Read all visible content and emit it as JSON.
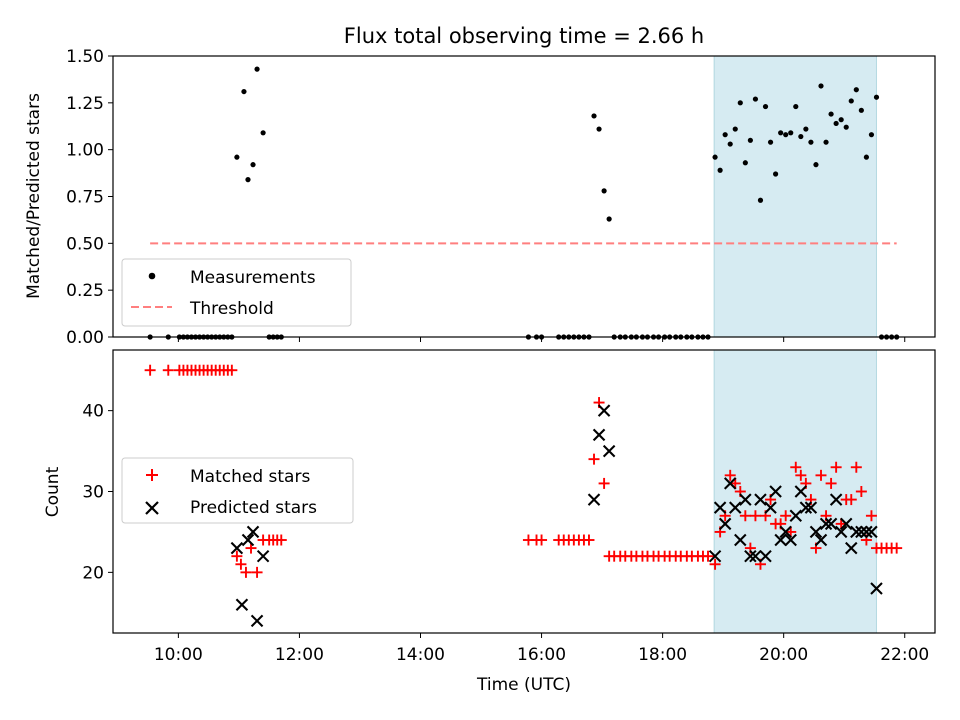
{
  "chart_data": [
    {
      "type": "scatter",
      "title": "Flux total observing time = 2.66 h",
      "xlabel": "",
      "ylabel": "Matched/Predicted stars",
      "xlim_hours": [
        8.92,
        22.5
      ],
      "ylim": [
        0,
        1.5
      ],
      "yticks": [
        0.0,
        0.25,
        0.5,
        0.75,
        1.0,
        1.25,
        1.5
      ],
      "ytick_labels": [
        "0.00",
        "0.25",
        "0.50",
        "0.75",
        "1.00",
        "1.25",
        "1.50"
      ],
      "shaded_span": [
        "18:51",
        "21:32"
      ],
      "shaded_color": "#add8e6",
      "legend_position": "lower-left",
      "series": [
        {
          "name": "Measurements",
          "marker": "dot",
          "color": "#000000",
          "points": [
            [
              "09:32",
              0.0
            ],
            [
              "09:50",
              0.0
            ],
            [
              "10:01",
              0.0
            ],
            [
              "10:05",
              0.0
            ],
            [
              "10:09",
              0.0
            ],
            [
              "10:13",
              0.0
            ],
            [
              "10:17",
              0.0
            ],
            [
              "10:21",
              0.0
            ],
            [
              "10:25",
              0.0
            ],
            [
              "10:29",
              0.0
            ],
            [
              "10:33",
              0.0
            ],
            [
              "10:37",
              0.0
            ],
            [
              "10:41",
              0.0
            ],
            [
              "10:45",
              0.0
            ],
            [
              "10:49",
              0.0
            ],
            [
              "10:53",
              0.0
            ],
            [
              "10:58",
              0.96
            ],
            [
              "11:05",
              1.31
            ],
            [
              "11:09",
              0.84
            ],
            [
              "11:14",
              0.92
            ],
            [
              "11:18",
              1.43
            ],
            [
              "11:24",
              1.09
            ],
            [
              "11:30",
              0.0
            ],
            [
              "11:34",
              0.0
            ],
            [
              "11:38",
              0.0
            ],
            [
              "11:42",
              0.0
            ],
            [
              "15:47",
              0.0
            ],
            [
              "15:55",
              0.0
            ],
            [
              "16:00",
              0.0
            ],
            [
              "16:17",
              0.0
            ],
            [
              "16:22",
              0.0
            ],
            [
              "16:27",
              0.0
            ],
            [
              "16:32",
              0.0
            ],
            [
              "16:37",
              0.0
            ],
            [
              "16:42",
              0.0
            ],
            [
              "16:47",
              0.0
            ],
            [
              "16:52",
              1.18
            ],
            [
              "16:57",
              1.11
            ],
            [
              "17:02",
              0.78
            ],
            [
              "17:07",
              0.63
            ],
            [
              "17:12",
              0.0
            ],
            [
              "17:18",
              0.0
            ],
            [
              "17:23",
              0.0
            ],
            [
              "17:29",
              0.0
            ],
            [
              "17:34",
              0.0
            ],
            [
              "17:40",
              0.0
            ],
            [
              "17:45",
              0.0
            ],
            [
              "17:51",
              0.0
            ],
            [
              "17:56",
              0.0
            ],
            [
              "18:02",
              0.0
            ],
            [
              "18:07",
              0.0
            ],
            [
              "18:13",
              0.0
            ],
            [
              "18:18",
              0.0
            ],
            [
              "18:24",
              0.0
            ],
            [
              "18:29",
              0.0
            ],
            [
              "18:35",
              0.0
            ],
            [
              "18:40",
              0.0
            ],
            [
              "18:45",
              0.0
            ],
            [
              "18:52",
              0.96
            ],
            [
              "18:57",
              0.89
            ],
            [
              "19:02",
              1.08
            ],
            [
              "19:07",
              1.03
            ],
            [
              "19:12",
              1.11
            ],
            [
              "19:17",
              1.25
            ],
            [
              "19:22",
              0.93
            ],
            [
              "19:27",
              1.05
            ],
            [
              "19:32",
              1.27
            ],
            [
              "19:37",
              0.73
            ],
            [
              "19:42",
              1.23
            ],
            [
              "19:47",
              1.04
            ],
            [
              "19:52",
              0.87
            ],
            [
              "19:57",
              1.09
            ],
            [
              "20:02",
              1.08
            ],
            [
              "20:07",
              1.09
            ],
            [
              "20:12",
              1.23
            ],
            [
              "20:17",
              1.07
            ],
            [
              "20:22",
              1.11
            ],
            [
              "20:27",
              1.04
            ],
            [
              "20:32",
              0.92
            ],
            [
              "20:37",
              1.34
            ],
            [
              "20:42",
              1.04
            ],
            [
              "20:47",
              1.19
            ],
            [
              "20:52",
              1.14
            ],
            [
              "20:57",
              1.16
            ],
            [
              "21:02",
              1.12
            ],
            [
              "21:07",
              1.26
            ],
            [
              "21:12",
              1.32
            ],
            [
              "21:17",
              1.21
            ],
            [
              "21:22",
              0.96
            ],
            [
              "21:27",
              1.08
            ],
            [
              "21:32",
              1.28
            ],
            [
              "21:37",
              0.0
            ],
            [
              "21:42",
              0.0
            ],
            [
              "21:47",
              0.0
            ],
            [
              "21:52",
              0.0
            ]
          ]
        },
        {
          "name": "Threshold",
          "line": "dashed",
          "color": "#ff7f7f",
          "points": [
            [
              "09:32",
              0.5
            ],
            [
              "21:52",
              0.5
            ]
          ]
        }
      ]
    },
    {
      "type": "scatter",
      "title": "",
      "xlabel": "Time (UTC)",
      "ylabel": "Count",
      "xlim_hours": [
        8.92,
        22.5
      ],
      "ylim": [
        12.5,
        47.5
      ],
      "yticks": [
        20,
        30,
        40
      ],
      "ytick_labels": [
        "20",
        "30",
        "40"
      ],
      "xticks": [
        "10:00",
        "12:00",
        "14:00",
        "16:00",
        "18:00",
        "20:00",
        "22:00"
      ],
      "shaded_span": [
        "18:51",
        "21:32"
      ],
      "shaded_color": "#add8e6",
      "legend_position": "center-left",
      "series": [
        {
          "name": "Matched stars",
          "marker": "plus",
          "color": "#ff0000",
          "points": [
            [
              "09:32",
              45
            ],
            [
              "09:50",
              45
            ],
            [
              "10:01",
              45
            ],
            [
              "10:05",
              45
            ],
            [
              "10:09",
              45
            ],
            [
              "10:13",
              45
            ],
            [
              "10:17",
              45
            ],
            [
              "10:21",
              45
            ],
            [
              "10:25",
              45
            ],
            [
              "10:29",
              45
            ],
            [
              "10:33",
              45
            ],
            [
              "10:37",
              45
            ],
            [
              "10:41",
              45
            ],
            [
              "10:45",
              45
            ],
            [
              "10:49",
              45
            ],
            [
              "10:53",
              45
            ],
            [
              "10:58",
              22
            ],
            [
              "11:02",
              21
            ],
            [
              "11:07",
              20
            ],
            [
              "11:12",
              23
            ],
            [
              "11:18",
              20
            ],
            [
              "11:24",
              24
            ],
            [
              "11:30",
              24
            ],
            [
              "11:34",
              24
            ],
            [
              "11:38",
              24
            ],
            [
              "11:42",
              24
            ],
            [
              "15:47",
              24
            ],
            [
              "15:55",
              24
            ],
            [
              "16:00",
              24
            ],
            [
              "16:17",
              24
            ],
            [
              "16:22",
              24
            ],
            [
              "16:27",
              24
            ],
            [
              "16:32",
              24
            ],
            [
              "16:37",
              24
            ],
            [
              "16:42",
              24
            ],
            [
              "16:47",
              24
            ],
            [
              "16:52",
              34
            ],
            [
              "16:57",
              41
            ],
            [
              "17:02",
              31
            ],
            [
              "17:07",
              22
            ],
            [
              "17:12",
              22
            ],
            [
              "17:18",
              22
            ],
            [
              "17:23",
              22
            ],
            [
              "17:29",
              22
            ],
            [
              "17:34",
              22
            ],
            [
              "17:40",
              22
            ],
            [
              "17:45",
              22
            ],
            [
              "17:51",
              22
            ],
            [
              "17:56",
              22
            ],
            [
              "18:02",
              22
            ],
            [
              "18:07",
              22
            ],
            [
              "18:13",
              22
            ],
            [
              "18:18",
              22
            ],
            [
              "18:24",
              22
            ],
            [
              "18:29",
              22
            ],
            [
              "18:35",
              22
            ],
            [
              "18:40",
              22
            ],
            [
              "18:45",
              22
            ],
            [
              "18:52",
              21
            ],
            [
              "18:57",
              25
            ],
            [
              "19:02",
              27
            ],
            [
              "19:07",
              32
            ],
            [
              "19:12",
              31
            ],
            [
              "19:17",
              30
            ],
            [
              "19:22",
              27
            ],
            [
              "19:27",
              23
            ],
            [
              "19:32",
              27
            ],
            [
              "19:37",
              21
            ],
            [
              "19:42",
              27
            ],
            [
              "19:47",
              29
            ],
            [
              "19:52",
              26
            ],
            [
              "19:57",
              26
            ],
            [
              "20:02",
              27
            ],
            [
              "20:07",
              25
            ],
            [
              "20:12",
              33
            ],
            [
              "20:17",
              32
            ],
            [
              "20:22",
              31
            ],
            [
              "20:27",
              29
            ],
            [
              "20:32",
              23
            ],
            [
              "20:37",
              32
            ],
            [
              "20:42",
              27
            ],
            [
              "20:47",
              31
            ],
            [
              "20:52",
              33
            ],
            [
              "20:57",
              26
            ],
            [
              "21:02",
              29
            ],
            [
              "21:07",
              29
            ],
            [
              "21:12",
              33
            ],
            [
              "21:17",
              30
            ],
            [
              "21:22",
              24
            ],
            [
              "21:27",
              27
            ],
            [
              "21:32",
              23
            ],
            [
              "21:37",
              23
            ],
            [
              "21:42",
              23
            ],
            [
              "21:47",
              23
            ],
            [
              "21:52",
              23
            ]
          ]
        },
        {
          "name": "Predicted stars",
          "marker": "x",
          "color": "#000000",
          "points": [
            [
              "10:58",
              23
            ],
            [
              "11:03",
              16
            ],
            [
              "11:09",
              24
            ],
            [
              "11:14",
              25
            ],
            [
              "11:18",
              14
            ],
            [
              "11:24",
              22
            ],
            [
              "16:52",
              29
            ],
            [
              "16:57",
              37
            ],
            [
              "17:02",
              40
            ],
            [
              "17:07",
              35
            ],
            [
              "18:52",
              22
            ],
            [
              "18:57",
              28
            ],
            [
              "19:02",
              26
            ],
            [
              "19:07",
              31
            ],
            [
              "19:12",
              28
            ],
            [
              "19:17",
              24
            ],
            [
              "19:22",
              29
            ],
            [
              "19:27",
              22
            ],
            [
              "19:32",
              22
            ],
            [
              "19:37",
              29
            ],
            [
              "19:42",
              22
            ],
            [
              "19:47",
              28
            ],
            [
              "19:52",
              30
            ],
            [
              "19:57",
              24
            ],
            [
              "20:02",
              25
            ],
            [
              "20:07",
              24
            ],
            [
              "20:12",
              27
            ],
            [
              "20:17",
              30
            ],
            [
              "20:22",
              28
            ],
            [
              "20:27",
              28
            ],
            [
              "20:32",
              25
            ],
            [
              "20:37",
              24
            ],
            [
              "20:42",
              26
            ],
            [
              "20:47",
              26
            ],
            [
              "20:52",
              29
            ],
            [
              "20:57",
              25
            ],
            [
              "21:02",
              26
            ],
            [
              "21:07",
              23
            ],
            [
              "21:12",
              25
            ],
            [
              "21:17",
              25
            ],
            [
              "21:22",
              25
            ],
            [
              "21:27",
              25
            ],
            [
              "21:32",
              18
            ]
          ]
        }
      ]
    }
  ]
}
